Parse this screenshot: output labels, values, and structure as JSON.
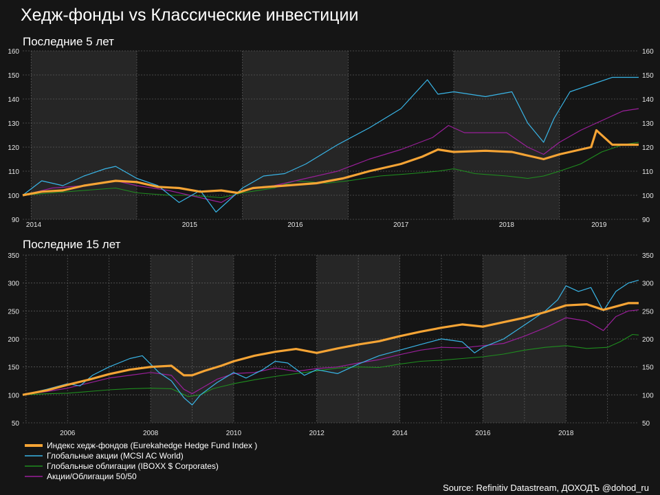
{
  "title": "Хедж-фонды vs Классические инвестиции",
  "source": "Source: Refinitiv Datastream, ДОХОДЪ @dohod_ru",
  "colors": {
    "background": "#151515",
    "shade": "#262626",
    "hedge": "#f5a435",
    "equities": "#39b6e8",
    "bonds": "#1f8f1f",
    "mix": "#9b1f9b"
  },
  "legend": [
    {
      "label": "Индекс хедж-фондов (Eurekahedge Hedge Fund Index )",
      "color": "#f5a435"
    },
    {
      "label": "Глобальные акции (MCSI AC World)",
      "color": "#39b6e8"
    },
    {
      "label": "Глобальные облигации (IBOXX $ Corporates)",
      "color": "#1f8f1f"
    },
    {
      "label": "Акции/Облигации 50/50",
      "color": "#9b1f9b"
    }
  ],
  "chart_data": [
    {
      "type": "line",
      "title": "Последние 5 лет",
      "xlim": [
        2013.92,
        2019.75
      ],
      "ylim": [
        90,
        160
      ],
      "yticks": [
        90,
        100,
        110,
        120,
        130,
        140,
        150,
        160
      ],
      "xtick_labels": [
        "2014",
        "2015",
        "2016",
        "2017",
        "2018",
        "2019"
      ],
      "grid": true,
      "series": [
        {
          "name": "Индекс хедж-фондов (Eurekahedge Hedge Fund Index )",
          "x": [
            2013.92,
            2014.1,
            2014.3,
            2014.5,
            2014.8,
            2015.0,
            2015.2,
            2015.4,
            2015.6,
            2015.8,
            2015.95,
            2016.1,
            2016.4,
            2016.7,
            2016.95,
            2017.2,
            2017.5,
            2017.7,
            2017.85,
            2018.0,
            2018.3,
            2018.55,
            2018.75,
            2018.85,
            2019.0,
            2019.2,
            2019.3,
            2019.35,
            2019.5,
            2019.75
          ],
          "values": [
            100,
            101.5,
            102,
            104,
            106,
            105.5,
            103.5,
            103,
            101.5,
            102,
            101,
            103,
            104,
            105,
            107,
            110,
            113,
            116,
            119,
            118,
            118.5,
            118,
            116,
            115,
            117,
            119,
            120,
            127,
            121,
            121
          ]
        },
        {
          "name": "Глобальные акции (MCSI AC World)",
          "x": [
            2013.92,
            2014.1,
            2014.3,
            2014.5,
            2014.7,
            2014.8,
            2015.0,
            2015.2,
            2015.4,
            2015.6,
            2015.75,
            2016.0,
            2016.2,
            2016.4,
            2016.6,
            2016.9,
            2017.2,
            2017.5,
            2017.75,
            2017.85,
            2018.0,
            2018.3,
            2018.55,
            2018.7,
            2018.85,
            2018.95,
            2019.1,
            2019.3,
            2019.5,
            2019.75
          ],
          "values": [
            100,
            106,
            104,
            108,
            111,
            112,
            107,
            104,
            97,
            102,
            93,
            103,
            108,
            109,
            113,
            121,
            128,
            136,
            148,
            142,
            143,
            141,
            143,
            130,
            122,
            132,
            143,
            146,
            149,
            149
          ]
        },
        {
          "name": "Глобальные облигации (IBOXX $ Corporates)",
          "x": [
            2013.92,
            2014.2,
            2014.5,
            2014.8,
            2015.0,
            2015.3,
            2015.5,
            2015.8,
            2016.0,
            2016.3,
            2016.5,
            2016.8,
            2017.0,
            2017.3,
            2017.6,
            2017.85,
            2018.0,
            2018.2,
            2018.5,
            2018.7,
            2018.85,
            2019.0,
            2019.2,
            2019.4,
            2019.6,
            2019.75
          ],
          "values": [
            100,
            101,
            102,
            103,
            101,
            100,
            100,
            99,
            101,
            103,
            106,
            105,
            106,
            108,
            109,
            110,
            111,
            109,
            108,
            107,
            108,
            110,
            113,
            118,
            121,
            122
          ]
        },
        {
          "name": "Акции/Облигации 50/50",
          "x": [
            2013.92,
            2014.2,
            2014.5,
            2014.8,
            2015.0,
            2015.3,
            2015.5,
            2015.8,
            2016.0,
            2016.3,
            2016.6,
            2016.9,
            2017.2,
            2017.5,
            2017.8,
            2017.95,
            2018.1,
            2018.3,
            2018.5,
            2018.7,
            2018.85,
            2019.0,
            2019.2,
            2019.4,
            2019.6,
            2019.75
          ],
          "values": [
            100,
            103,
            104,
            106,
            104,
            102,
            100,
            97,
            102,
            104,
            107,
            110,
            115,
            119,
            124,
            129,
            126,
            126,
            126,
            120,
            117,
            122,
            127,
            131,
            135,
            136
          ]
        }
      ]
    },
    {
      "type": "line",
      "title": "Последние 15 лет",
      "xlim": [
        2004.92,
        2019.75
      ],
      "ylim": [
        50,
        350
      ],
      "yticks": [
        50,
        100,
        150,
        200,
        250,
        300,
        350
      ],
      "xtick_labels": [
        "2006",
        "2008",
        "2010",
        "2012",
        "2014",
        "2016",
        "2018"
      ],
      "grid": true,
      "series": [
        {
          "name": "Индекс хедж-фондов (Eurekahedge Hedge Fund Index )",
          "x": [
            2004.92,
            2005.5,
            2006.0,
            2006.5,
            2007.0,
            2007.5,
            2008.0,
            2008.5,
            2008.8,
            2009.0,
            2009.3,
            2009.7,
            2010.0,
            2010.5,
            2011.0,
            2011.5,
            2012.0,
            2012.5,
            2013.0,
            2013.5,
            2014.0,
            2014.5,
            2015.0,
            2015.5,
            2016.0,
            2016.5,
            2017.0,
            2017.5,
            2018.0,
            2018.5,
            2018.9,
            2019.2,
            2019.5,
            2019.75
          ],
          "values": [
            100,
            108,
            118,
            127,
            137,
            145,
            150,
            152,
            135,
            135,
            143,
            152,
            160,
            170,
            177,
            182,
            175,
            183,
            190,
            196,
            205,
            213,
            220,
            226,
            222,
            230,
            238,
            248,
            260,
            262,
            252,
            258,
            264,
            264
          ]
        },
        {
          "name": "Глобальные акции (MCSI AC World)",
          "x": [
            2004.92,
            2005.5,
            2006.0,
            2006.3,
            2006.6,
            2007.0,
            2007.5,
            2007.8,
            2008.2,
            2008.5,
            2008.8,
            2009.0,
            2009.2,
            2009.6,
            2010.0,
            2010.3,
            2010.7,
            2011.0,
            2011.3,
            2011.7,
            2012.0,
            2012.5,
            2013.0,
            2013.5,
            2014.0,
            2014.5,
            2015.0,
            2015.5,
            2015.8,
            2016.0,
            2016.5,
            2017.0,
            2017.5,
            2017.8,
            2018.0,
            2018.3,
            2018.6,
            2018.9,
            2019.2,
            2019.5,
            2019.75
          ],
          "values": [
            100,
            110,
            120,
            116,
            135,
            150,
            165,
            170,
            140,
            125,
            95,
            82,
            100,
            122,
            140,
            130,
            145,
            160,
            157,
            135,
            145,
            138,
            155,
            170,
            180,
            190,
            200,
            195,
            175,
            185,
            200,
            225,
            250,
            270,
            295,
            285,
            292,
            250,
            285,
            300,
            305
          ]
        },
        {
          "name": "Глобальные облигации (IBOXX $ Corporates)",
          "x": [
            2004.92,
            2005.5,
            2006.0,
            2006.5,
            2007.0,
            2007.5,
            2008.0,
            2008.5,
            2008.9,
            2009.2,
            2009.5,
            2010.0,
            2010.5,
            2011.0,
            2011.5,
            2012.0,
            2012.5,
            2013.0,
            2013.5,
            2014.0,
            2014.5,
            2015.0,
            2015.5,
            2016.0,
            2016.5,
            2017.0,
            2017.5,
            2018.0,
            2018.5,
            2019.0,
            2019.3,
            2019.6,
            2019.75
          ],
          "values": [
            100,
            102,
            103,
            106,
            109,
            111,
            112,
            111,
            97,
            100,
            111,
            120,
            127,
            133,
            138,
            143,
            148,
            150,
            149,
            155,
            160,
            162,
            165,
            168,
            173,
            180,
            185,
            188,
            183,
            185,
            195,
            208,
            207
          ]
        },
        {
          "name": "Акции/Облигации 50/50",
          "x": [
            2004.92,
            2005.5,
            2006.0,
            2006.5,
            2007.0,
            2007.5,
            2008.0,
            2008.5,
            2008.8,
            2009.0,
            2009.3,
            2009.6,
            2010.0,
            2010.5,
            2011.0,
            2011.5,
            2012.0,
            2012.5,
            2013.0,
            2013.5,
            2014.0,
            2014.5,
            2015.0,
            2015.5,
            2016.0,
            2016.5,
            2017.0,
            2017.5,
            2018.0,
            2018.5,
            2018.9,
            2019.2,
            2019.5,
            2019.75
          ],
          "values": [
            100,
            106,
            112,
            121,
            130,
            135,
            140,
            135,
            110,
            102,
            115,
            128,
            138,
            140,
            148,
            142,
            147,
            150,
            157,
            163,
            172,
            180,
            185,
            184,
            188,
            192,
            205,
            220,
            238,
            232,
            215,
            240,
            250,
            252
          ]
        }
      ]
    }
  ]
}
